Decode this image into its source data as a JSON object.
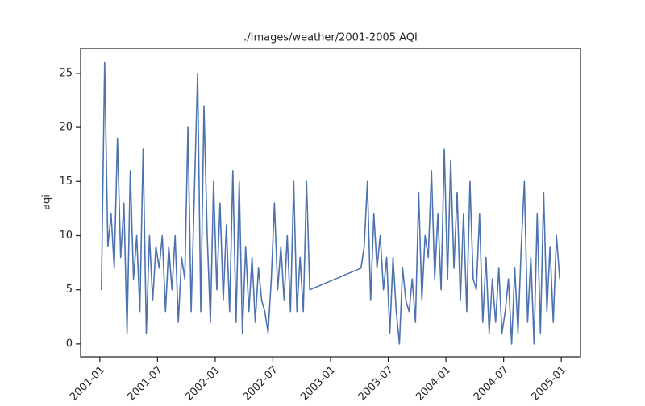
{
  "chart_data": {
    "type": "line",
    "title": "./Images/weather/2001-2005 AQI",
    "y_label": "aqi",
    "color": "#4c72b0",
    "x": [
      "2001-01",
      "2001-01",
      "2001-01",
      "2001-02",
      "2001-02",
      "2001-02",
      "2001-03",
      "2001-03",
      "2001-03",
      "2001-04",
      "2001-04",
      "2001-04",
      "2001-05",
      "2001-05",
      "2001-05",
      "2001-06",
      "2001-06",
      "2001-06",
      "2001-07",
      "2001-07",
      "2001-07",
      "2001-08",
      "2001-08",
      "2001-08",
      "2001-09",
      "2001-09",
      "2001-09",
      "2001-10",
      "2001-10",
      "2001-10",
      "2001-11",
      "2001-11",
      "2001-11",
      "2001-12",
      "2001-12",
      "2001-12",
      "2002-01",
      "2002-01",
      "2002-01",
      "2002-02",
      "2002-02",
      "2002-02",
      "2002-03",
      "2002-03",
      "2002-03",
      "2002-04",
      "2002-04",
      "2002-04",
      "2002-05",
      "2002-05",
      "2002-05",
      "2002-06",
      "2002-06",
      "2002-06",
      "2002-07",
      "2002-07",
      "2002-07",
      "2002-08",
      "2002-08",
      "2002-08",
      "2002-09",
      "2002-09",
      "2002-09",
      "2002-10",
      "2002-10",
      "2002-10",
      "2003-04",
      "2003-04",
      "2003-04",
      "2003-05",
      "2003-05",
      "2003-05",
      "2003-06",
      "2003-06",
      "2003-06",
      "2003-07",
      "2003-07",
      "2003-07",
      "2003-08",
      "2003-08",
      "2003-08",
      "2003-09",
      "2003-09",
      "2003-09",
      "2003-10",
      "2003-10",
      "2003-10",
      "2003-11",
      "2003-11",
      "2003-11",
      "2003-12",
      "2003-12",
      "2003-12",
      "2004-01",
      "2004-01",
      "2004-01",
      "2004-02",
      "2004-02",
      "2004-02",
      "2004-03",
      "2004-03",
      "2004-03",
      "2004-04",
      "2004-04",
      "2004-04",
      "2004-05",
      "2004-05",
      "2004-05",
      "2004-06",
      "2004-06",
      "2004-06",
      "2004-07",
      "2004-07",
      "2004-07",
      "2004-08",
      "2004-08",
      "2004-08",
      "2004-09",
      "2004-09",
      "2004-09",
      "2004-10",
      "2004-10",
      "2004-10",
      "2004-11",
      "2004-11",
      "2004-11",
      "2004-12",
      "2004-12",
      "2004-12"
    ],
    "values": [
      5,
      26,
      9,
      12,
      7,
      19,
      8,
      13,
      1,
      16,
      6,
      10,
      3,
      18,
      1,
      10,
      4,
      9,
      7,
      10,
      3,
      9,
      5,
      10,
      2,
      8,
      6,
      20,
      3,
      14,
      25,
      3,
      22,
      10,
      2,
      15,
      5,
      13,
      4,
      11,
      3,
      16,
      2,
      15,
      1,
      9,
      3,
      8,
      2,
      7,
      4,
      3,
      1,
      6,
      13,
      5,
      9,
      4,
      10,
      3,
      15,
      3,
      8,
      3,
      15,
      5,
      7,
      9,
      15,
      4,
      12,
      7,
      10,
      5,
      8,
      1,
      8,
      3,
      0,
      7,
      4,
      3,
      6,
      2,
      14,
      4,
      10,
      8,
      16,
      6,
      12,
      5,
      18,
      6,
      17,
      7,
      14,
      4,
      12,
      3,
      15,
      6,
      5,
      12,
      2,
      8,
      1,
      6,
      2,
      7,
      1,
      3,
      6,
      0,
      7,
      1,
      9,
      15,
      2,
      8,
      0,
      12,
      1,
      14,
      3,
      9,
      2,
      10,
      6
    ],
    "xlim": [
      "2000-11",
      "2005-03"
    ],
    "xticks": [
      "2001-01",
      "2001-07",
      "2002-01",
      "2002-07",
      "2003-01",
      "2003-07",
      "2004-01",
      "2004-07",
      "2005-01"
    ],
    "ylim": [
      -1.2,
      27.3
    ],
    "yticks": [
      0,
      5,
      10,
      15,
      20,
      25
    ]
  }
}
